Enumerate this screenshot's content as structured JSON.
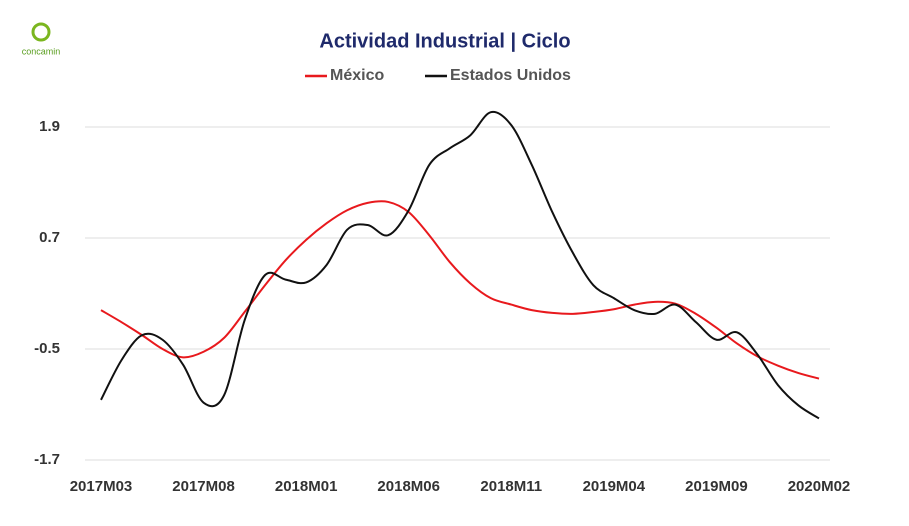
{
  "brand": "concamin",
  "chart_data": {
    "type": "line",
    "title": "Actividad Industrial | Ciclo",
    "categories": [
      "2017M03",
      null,
      null,
      null,
      null,
      "2017M08",
      null,
      null,
      null,
      null,
      "2018M01",
      null,
      null,
      null,
      null,
      "2018M06",
      null,
      null,
      null,
      null,
      "2018M11",
      null,
      null,
      null,
      null,
      "2019M04",
      null,
      null,
      null,
      null,
      "2019M09",
      null,
      null,
      null,
      null,
      "2020M02"
    ],
    "series": [
      {
        "name": "México",
        "color": "#e8191d",
        "values": [
          -0.08,
          -0.21,
          -0.35,
          -0.5,
          -0.59,
          -0.53,
          -0.38,
          -0.1,
          0.19,
          0.46,
          0.68,
          0.86,
          1.0,
          1.08,
          1.09,
          0.98,
          0.73,
          0.44,
          0.21,
          0.05,
          -0.02,
          -0.08,
          -0.11,
          -0.12,
          -0.1,
          -0.07,
          -0.02,
          0.01,
          -0.01,
          -0.12,
          -0.27,
          -0.44,
          -0.58,
          -0.68,
          -0.76,
          -0.82
        ]
      },
      {
        "name": "Estados Unidos",
        "color": "#111111",
        "values": [
          -1.05,
          -0.62,
          -0.35,
          -0.4,
          -0.67,
          -1.08,
          -1.0,
          -0.19,
          0.3,
          0.25,
          0.22,
          0.41,
          0.79,
          0.84,
          0.73,
          1.0,
          1.49,
          1.67,
          1.81,
          2.06,
          1.92,
          1.49,
          0.98,
          0.54,
          0.19,
          0.05,
          -0.08,
          -0.12,
          -0.02,
          -0.21,
          -0.4,
          -0.32,
          -0.56,
          -0.89,
          -1.11,
          -1.25
        ]
      }
    ],
    "ylim": [
      -1.7,
      2.1
    ],
    "yticks": [
      -1.7,
      -0.5,
      0.7,
      1.9
    ],
    "grid": true,
    "legend": "top"
  }
}
